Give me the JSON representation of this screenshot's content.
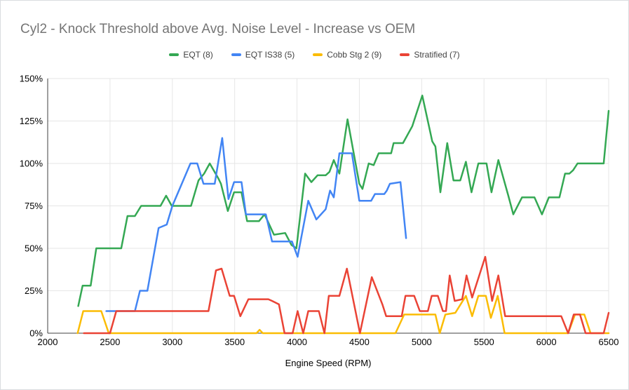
{
  "chart_data": {
    "type": "line",
    "title": "Cyl2 - Knock Threshold above Avg. Noise Level - Increase vs OEM",
    "xlabel": "Engine Speed (RPM)",
    "ylabel": "",
    "xlim": [
      2000,
      6500
    ],
    "ylim_percent": [
      0,
      150
    ],
    "x_ticks": [
      2000,
      2500,
      3000,
      3500,
      4000,
      4500,
      5000,
      5500,
      6000,
      6500
    ],
    "y_ticks_percent": [
      0,
      25,
      50,
      75,
      100,
      125,
      150
    ],
    "grid": true,
    "legend_position": "top",
    "colors": {
      "green": "#34a853",
      "blue": "#4285f4",
      "yellow": "#fbbc04",
      "red": "#ea4335",
      "title_gray": "#757575",
      "gridline": "#e6e6e6",
      "axis": "#424242"
    },
    "series": [
      {
        "name": "EQT (8)",
        "color": "#34a853",
        "points": [
          [
            2245,
            16
          ],
          [
            2280,
            28
          ],
          [
            2345,
            28
          ],
          [
            2390,
            50
          ],
          [
            2590,
            50
          ],
          [
            2640,
            69
          ],
          [
            2700,
            69
          ],
          [
            2750,
            75
          ],
          [
            2905,
            75
          ],
          [
            2950,
            81
          ],
          [
            2995,
            75
          ],
          [
            3150,
            75
          ],
          [
            3210,
            90
          ],
          [
            3255,
            94
          ],
          [
            3300,
            100
          ],
          [
            3370,
            91
          ],
          [
            3390,
            88
          ],
          [
            3445,
            72
          ],
          [
            3495,
            83
          ],
          [
            3555,
            83
          ],
          [
            3600,
            66
          ],
          [
            3695,
            66
          ],
          [
            3740,
            70
          ],
          [
            3815,
            58
          ],
          [
            3905,
            59
          ],
          [
            3955,
            52
          ],
          [
            3995,
            50
          ],
          [
            4065,
            94
          ],
          [
            4115,
            89
          ],
          [
            4165,
            93
          ],
          [
            4230,
            93
          ],
          [
            4260,
            95
          ],
          [
            4295,
            102
          ],
          [
            4340,
            94
          ],
          [
            4405,
            126
          ],
          [
            4500,
            88
          ],
          [
            4525,
            85
          ],
          [
            4575,
            100
          ],
          [
            4615,
            99
          ],
          [
            4655,
            106
          ],
          [
            4755,
            106
          ],
          [
            4775,
            112
          ],
          [
            4850,
            112
          ],
          [
            4925,
            122
          ],
          [
            5005,
            140
          ],
          [
            5070,
            118
          ],
          [
            5085,
            113
          ],
          [
            5110,
            110
          ],
          [
            5150,
            83
          ],
          [
            5205,
            112
          ],
          [
            5255,
            90
          ],
          [
            5310,
            90
          ],
          [
            5355,
            101
          ],
          [
            5400,
            83
          ],
          [
            5455,
            100
          ],
          [
            5520,
            100
          ],
          [
            5560,
            83
          ],
          [
            5615,
            102
          ],
          [
            5695,
            81
          ],
          [
            5735,
            70
          ],
          [
            5805,
            80
          ],
          [
            5905,
            80
          ],
          [
            5965,
            70
          ],
          [
            6020,
            80
          ],
          [
            6105,
            80
          ],
          [
            6150,
            94
          ],
          [
            6185,
            94
          ],
          [
            6215,
            96
          ],
          [
            6250,
            100
          ],
          [
            6460,
            100
          ],
          [
            6500,
            131
          ]
        ]
      },
      {
        "name": "EQT IS38 (5)",
        "color": "#4285f4",
        "points": [
          [
            2470,
            13
          ],
          [
            2700,
            13
          ],
          [
            2740,
            25
          ],
          [
            2800,
            25
          ],
          [
            2890,
            62
          ],
          [
            2955,
            64
          ],
          [
            3000,
            75
          ],
          [
            3145,
            100
          ],
          [
            3200,
            100
          ],
          [
            3250,
            88
          ],
          [
            3340,
            88
          ],
          [
            3400,
            115
          ],
          [
            3450,
            79
          ],
          [
            3495,
            89
          ],
          [
            3555,
            89
          ],
          [
            3590,
            70
          ],
          [
            3750,
            70
          ],
          [
            3800,
            54
          ],
          [
            3960,
            54
          ],
          [
            4005,
            45
          ],
          [
            4090,
            78
          ],
          [
            4155,
            67
          ],
          [
            4230,
            73
          ],
          [
            4265,
            84
          ],
          [
            4295,
            80
          ],
          [
            4340,
            106
          ],
          [
            4440,
            106
          ],
          [
            4500,
            78
          ],
          [
            4595,
            78
          ],
          [
            4625,
            82
          ],
          [
            4700,
            82
          ],
          [
            4720,
            84
          ],
          [
            4745,
            88
          ],
          [
            4830,
            89
          ],
          [
            4875,
            56
          ]
        ]
      },
      {
        "name": "Cobb Stg 2 (9)",
        "color": "#fbbc04",
        "points": [
          [
            2240,
            0
          ],
          [
            2285,
            13
          ],
          [
            2430,
            13
          ],
          [
            2490,
            0
          ],
          [
            3675,
            0
          ],
          [
            3700,
            2
          ],
          [
            3725,
            0
          ],
          [
            4790,
            0
          ],
          [
            4860,
            11
          ],
          [
            5110,
            11
          ],
          [
            5145,
            0
          ],
          [
            5190,
            11
          ],
          [
            5270,
            12
          ],
          [
            5355,
            22
          ],
          [
            5405,
            10
          ],
          [
            5455,
            22
          ],
          [
            5515,
            22
          ],
          [
            5555,
            9
          ],
          [
            5610,
            22
          ],
          [
            5665,
            0
          ],
          [
            6175,
            0
          ],
          [
            6230,
            11
          ],
          [
            6305,
            11
          ],
          [
            6355,
            0
          ],
          [
            6500,
            0
          ]
        ]
      },
      {
        "name": "Stratified (7)",
        "color": "#ea4335",
        "points": [
          [
            2290,
            0
          ],
          [
            2500,
            0
          ],
          [
            2550,
            13
          ],
          [
            3290,
            13
          ],
          [
            3350,
            37
          ],
          [
            3395,
            38
          ],
          [
            3460,
            22
          ],
          [
            3495,
            22
          ],
          [
            3545,
            10
          ],
          [
            3610,
            20
          ],
          [
            3770,
            20
          ],
          [
            3800,
            19
          ],
          [
            3855,
            17
          ],
          [
            3900,
            0
          ],
          [
            3965,
            0
          ],
          [
            4005,
            13
          ],
          [
            4050,
            0
          ],
          [
            4090,
            13
          ],
          [
            4175,
            13
          ],
          [
            4220,
            0
          ],
          [
            4255,
            22
          ],
          [
            4340,
            22
          ],
          [
            4400,
            38
          ],
          [
            4505,
            0
          ],
          [
            4600,
            33
          ],
          [
            4685,
            17
          ],
          [
            4715,
            10
          ],
          [
            4840,
            10
          ],
          [
            4870,
            22
          ],
          [
            4940,
            22
          ],
          [
            4985,
            13
          ],
          [
            5050,
            13
          ],
          [
            5080,
            22
          ],
          [
            5130,
            22
          ],
          [
            5170,
            13
          ],
          [
            5195,
            13
          ],
          [
            5225,
            34
          ],
          [
            5265,
            19
          ],
          [
            5325,
            20
          ],
          [
            5360,
            34
          ],
          [
            5405,
            21
          ],
          [
            5510,
            45
          ],
          [
            5565,
            19
          ],
          [
            5615,
            34
          ],
          [
            5670,
            10
          ],
          [
            6120,
            10
          ],
          [
            6175,
            0
          ],
          [
            6220,
            11
          ],
          [
            6270,
            11
          ],
          [
            6315,
            0
          ],
          [
            6460,
            0
          ],
          [
            6500,
            12
          ]
        ]
      }
    ]
  }
}
